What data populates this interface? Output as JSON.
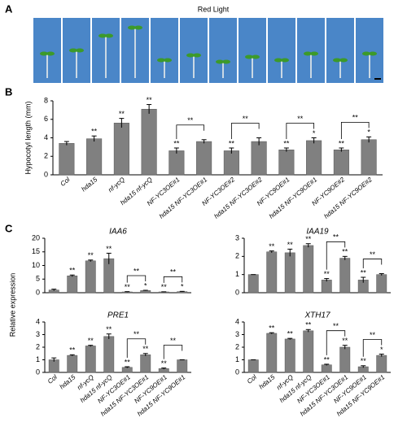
{
  "panel_labels": [
    "A",
    "B",
    "C"
  ],
  "photo_title": "Red Light",
  "shared_ylabel": "Relative expression",
  "chart_data": [
    {
      "type": "bar",
      "ylabel": "Hypocotyl length (mm)",
      "color": "#808080",
      "categories": [
        "Col",
        "hda15",
        "nf-ycQ",
        "hda15 nf-ycQ",
        "NF-YC3OE#1",
        "hda15 NF-YC3OE#1",
        "NF-YC3OE#2",
        "hda15 NF-YC3OE#2",
        "NF-YC9OE#1",
        "hda15 NF-YC9OE#1",
        "NF-YC9OE#2",
        "hda15 NF-YC9OE#2"
      ],
      "values": [
        3.4,
        3.9,
        5.6,
        7.1,
        2.6,
        3.6,
        2.6,
        3.6,
        2.7,
        3.7,
        2.7,
        3.8
      ],
      "errors": [
        0.2,
        0.3,
        0.5,
        0.5,
        0.3,
        0.2,
        0.3,
        0.4,
        0.2,
        0.3,
        0.2,
        0.3
      ],
      "sig_labels": [
        null,
        "**",
        "**",
        "**",
        "**",
        null,
        "**",
        null,
        "**",
        "*",
        "**",
        "*"
      ],
      "brackets": [
        {
          "pair": [
            4,
            5
          ],
          "label": "**"
        },
        {
          "pair": [
            6,
            7
          ],
          "label": "**"
        },
        {
          "pair": [
            8,
            9
          ],
          "label": "**"
        },
        {
          "pair": [
            10,
            11
          ],
          "label": "**"
        }
      ],
      "ylim": [
        0,
        8
      ],
      "yticks": [
        0,
        2,
        4,
        6,
        8
      ]
    },
    {
      "type": "bar",
      "title": "IAA6",
      "color": "#808080",
      "categories": [
        "Col",
        "hda15",
        "nf-ycQ",
        "hda15 nf-ycQ",
        "NF-YC3OE#1",
        "hda15 NF-YC3OE#1",
        "NF-YC9OE#1",
        "hda15 NF-YC9OE#1"
      ],
      "values": [
        1,
        6.2,
        11.7,
        12.5,
        0.3,
        0.8,
        0.3,
        0.4
      ],
      "errors": [
        0.3,
        0.3,
        0.3,
        2,
        0.1,
        0.1,
        0.05,
        0.1
      ],
      "sig_labels": [
        null,
        "**",
        "**",
        "**",
        "**",
        "*",
        "**",
        "*"
      ],
      "brackets": [
        {
          "pair": [
            4,
            5
          ],
          "label": "**"
        },
        {
          "pair": [
            6,
            7
          ],
          "label": "**"
        }
      ],
      "ylim": [
        0,
        20
      ],
      "yticks": [
        0,
        5,
        10,
        15,
        20
      ]
    },
    {
      "type": "bar",
      "title": "IAA19",
      "color": "#808080",
      "categories": [
        "Col",
        "hda15",
        "nf-ycQ",
        "hda15 nf-ycQ",
        "NF-YC3OE#1",
        "hda15 NF-YC3OE#1",
        "NF-YC9OE#1",
        "hda15 NF-YC9OE#1"
      ],
      "values": [
        1,
        2.25,
        2.2,
        2.6,
        0.7,
        1.9,
        0.7,
        1.0
      ],
      "errors": [
        0,
        0.05,
        0.2,
        0.1,
        0.08,
        0.1,
        0.15,
        0.05
      ],
      "sig_labels": [
        null,
        "**",
        "**",
        "**",
        "**",
        "**",
        "**",
        null
      ],
      "brackets": [
        {
          "pair": [
            4,
            5
          ],
          "label": "**"
        },
        {
          "pair": [
            6,
            7
          ],
          "label": "**"
        }
      ],
      "ylim": [
        0,
        3
      ],
      "yticks": [
        0,
        1,
        2,
        3
      ]
    },
    {
      "type": "bar",
      "title": "PRE1",
      "color": "#808080",
      "categories": [
        "Col",
        "hda15",
        "nf-ycQ",
        "hda15 nf-ycQ",
        "NF-YC3OE#1",
        "hda15 NF-YC3OE#1",
        "NF-YC9OE#1",
        "hda15 NF-YC9OE#1"
      ],
      "values": [
        1,
        1.35,
        2.1,
        2.85,
        0.4,
        1.4,
        0.3,
        1.0
      ],
      "errors": [
        0.15,
        0.05,
        0.05,
        0.2,
        0.05,
        0.1,
        0.05,
        0
      ],
      "sig_labels": [
        null,
        "**",
        "**",
        "**",
        "**",
        "**",
        "**",
        null
      ],
      "brackets": [
        {
          "pair": [
            4,
            5
          ],
          "label": "**"
        },
        {
          "pair": [
            6,
            7
          ],
          "label": "**"
        }
      ],
      "ylim": [
        0,
        4
      ],
      "yticks": [
        0,
        1,
        2,
        3,
        4
      ]
    },
    {
      "type": "bar",
      "title": "XTH17",
      "color": "#808080",
      "categories": [
        "Col",
        "hda15",
        "nf-ycQ",
        "hda15 nf-ycQ",
        "NF-YC3OE#1",
        "hda15 NF-YC3OE#1",
        "NF-YC9OE#1",
        "hda15 NF-YC9OE#1"
      ],
      "values": [
        1,
        3.1,
        2.65,
        3.3,
        0.6,
        2.0,
        0.45,
        1.35
      ],
      "errors": [
        0,
        0.05,
        0.05,
        0.1,
        0.05,
        0.15,
        0.08,
        0.1
      ],
      "sig_labels": [
        null,
        "**",
        "**",
        "**",
        "**",
        "**",
        "**",
        "*"
      ],
      "brackets": [
        {
          "pair": [
            4,
            5
          ],
          "label": "**"
        },
        {
          "pair": [
            6,
            7
          ],
          "label": "**"
        }
      ],
      "ylim": [
        0,
        4
      ],
      "yticks": [
        0,
        1,
        2,
        3,
        4
      ]
    }
  ]
}
